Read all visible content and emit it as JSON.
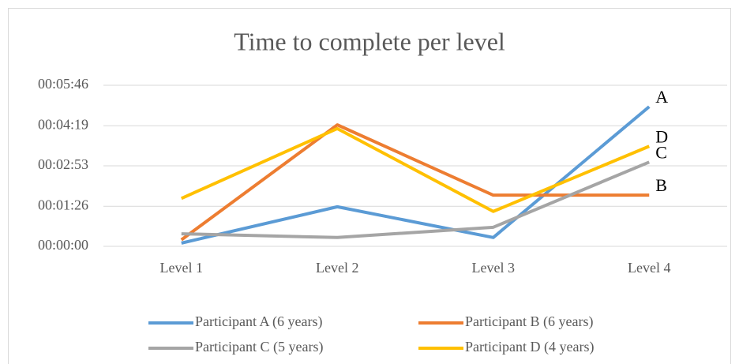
{
  "chart_data": {
    "type": "line",
    "title": "Time to complete per level",
    "categories": [
      "Level 1",
      "Level 2",
      "Level 3",
      "Level 4"
    ],
    "series": [
      {
        "name": "Participant A (6 years)",
        "color": "#5b9bd5",
        "values": [
          7,
          85,
          19,
          300
        ],
        "label": "A"
      },
      {
        "name": "Participant B (6 years)",
        "color": "#ed7d31",
        "values": [
          14,
          261,
          110,
          110
        ],
        "label": "B"
      },
      {
        "name": "Participant C (5 years)",
        "color": "#a5a5a5",
        "values": [
          27,
          19,
          41,
          181
        ],
        "label": "C"
      },
      {
        "name": "Participant D (4 years)",
        "color": "#ffc000",
        "values": [
          103,
          253,
          75,
          215
        ],
        "label": "D"
      }
    ],
    "ylim": [
      0,
      346
    ],
    "yticks": [
      {
        "value": 0,
        "label": "00:00:00"
      },
      {
        "value": 86,
        "label": "00:01:26"
      },
      {
        "value": 173,
        "label": "00:02:53"
      },
      {
        "value": 259,
        "label": "00:04:19"
      },
      {
        "value": 346,
        "label": "00:05:46"
      }
    ],
    "grid": true,
    "legend": "bottom"
  }
}
